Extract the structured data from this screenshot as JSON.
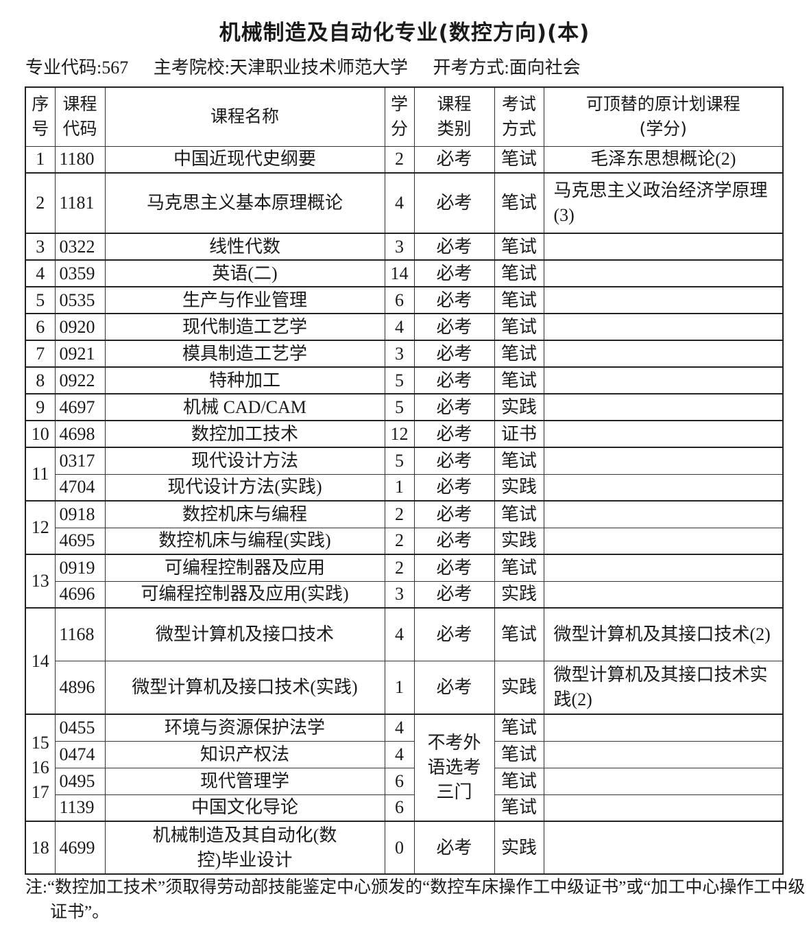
{
  "title": "机械制造及自动化专业(数控方向)(本)",
  "meta": {
    "code": "专业代码:567",
    "school": "主考院校:天津职业技术师范大学",
    "mode": "开考方式:面向社会"
  },
  "table": {
    "headers": {
      "seq": "序号",
      "code": "课程代码",
      "name": "课程名称",
      "credits": "学分",
      "type": "课程类别",
      "method": "考试方式",
      "replaces": "可顶替的原计划课程(学分)"
    },
    "groups": [
      {
        "seq": "1",
        "courses": [
          {
            "code": "1180",
            "name": "中国近现代史纲要",
            "credits": "2",
            "type": "必考",
            "method": "笔试",
            "replaces": "毛泽东思想概论(2)"
          }
        ]
      },
      {
        "seq": "2",
        "courses": [
          {
            "code": "1181",
            "name": "马克思主义基本原理概论",
            "credits": "4",
            "type": "必考",
            "method": "笔试",
            "replaces": "马克思主义政治经济学原理(3)"
          }
        ]
      },
      {
        "seq": "3",
        "courses": [
          {
            "code": "0322",
            "name": "线性代数",
            "credits": "3",
            "type": "必考",
            "method": "笔试",
            "replaces": ""
          }
        ]
      },
      {
        "seq": "4",
        "courses": [
          {
            "code": "0359",
            "name": "英语(二)",
            "credits": "14",
            "type": "必考",
            "method": "笔试",
            "replaces": ""
          }
        ]
      },
      {
        "seq": "5",
        "courses": [
          {
            "code": "0535",
            "name": "生产与作业管理",
            "credits": "6",
            "type": "必考",
            "method": "笔试",
            "replaces": ""
          }
        ]
      },
      {
        "seq": "6",
        "courses": [
          {
            "code": "0920",
            "name": "现代制造工艺学",
            "credits": "4",
            "type": "必考",
            "method": "笔试",
            "replaces": ""
          }
        ]
      },
      {
        "seq": "7",
        "courses": [
          {
            "code": "0921",
            "name": "模具制造工艺学",
            "credits": "3",
            "type": "必考",
            "method": "笔试",
            "replaces": ""
          }
        ]
      },
      {
        "seq": "8",
        "courses": [
          {
            "code": "0922",
            "name": "特种加工",
            "credits": "5",
            "type": "必考",
            "method": "笔试",
            "replaces": ""
          }
        ]
      },
      {
        "seq": "9",
        "courses": [
          {
            "code": "4697",
            "name": "机械 CAD/CAM",
            "credits": "5",
            "type": "必考",
            "method": "实践",
            "replaces": ""
          }
        ]
      },
      {
        "seq": "10",
        "courses": [
          {
            "code": "4698",
            "name": "数控加工技术",
            "credits": "12",
            "type": "必考",
            "method": "证书",
            "replaces": ""
          }
        ]
      },
      {
        "seq": "11",
        "courses": [
          {
            "code": "0317",
            "name": "现代设计方法",
            "credits": "5",
            "type": "必考",
            "method": "笔试",
            "replaces": ""
          },
          {
            "code": "4704",
            "name": "现代设计方法(实践)",
            "credits": "1",
            "type": "必考",
            "method": "实践",
            "replaces": ""
          }
        ]
      },
      {
        "seq": "12",
        "courses": [
          {
            "code": "0918",
            "name": "数控机床与编程",
            "credits": "2",
            "type": "必考",
            "method": "笔试",
            "replaces": ""
          },
          {
            "code": "4695",
            "name": "数控机床与编程(实践)",
            "credits": "2",
            "type": "必考",
            "method": "实践",
            "replaces": ""
          }
        ]
      },
      {
        "seq": "13",
        "courses": [
          {
            "code": "0919",
            "name": "可编程控制器及应用",
            "credits": "2",
            "type": "必考",
            "method": "笔试",
            "replaces": ""
          },
          {
            "code": "4696",
            "name": "可编程控制器及应用(实践)",
            "credits": "3",
            "type": "必考",
            "method": "实践",
            "replaces": ""
          }
        ]
      },
      {
        "seq": "14",
        "courses": [
          {
            "code": "1168",
            "name": "微型计算机及接口技术",
            "credits": "4",
            "type": "必考",
            "method": "笔试",
            "replaces": "微型计算机及其接口技术(2)"
          },
          {
            "code": "4896",
            "name": "微型计算机及接口技术(实践)",
            "credits": "1",
            "type": "必考",
            "method": "实践",
            "replaces": "微型计算机及其接口技术实践(2)"
          }
        ]
      },
      {
        "seq": "15 16 17",
        "shared_type": "不考外语选考三门",
        "courses": [
          {
            "code": "0455",
            "name": "环境与资源保护法学",
            "credits": "4",
            "method": "笔试",
            "replaces": ""
          },
          {
            "code": "0474",
            "name": "知识产权法",
            "credits": "4",
            "method": "笔试",
            "replaces": ""
          },
          {
            "code": "0495",
            "name": "现代管理学",
            "credits": "6",
            "method": "笔试",
            "replaces": ""
          },
          {
            "code": "1139",
            "name": "中国文化导论",
            "credits": "6",
            "method": "笔试",
            "replaces": ""
          }
        ]
      },
      {
        "seq": "18",
        "courses": [
          {
            "code": "4699",
            "name": "机械制造及其自动化(数控)毕业设计",
            "credits": "0",
            "type": "必考",
            "method": "实践",
            "replaces": ""
          }
        ]
      }
    ]
  },
  "note": "注:“数控加工技术”须取得劳动部技能鉴定中心颁发的“数控车床操作工中级证书”或“加工中心操作工中级证书”。"
}
